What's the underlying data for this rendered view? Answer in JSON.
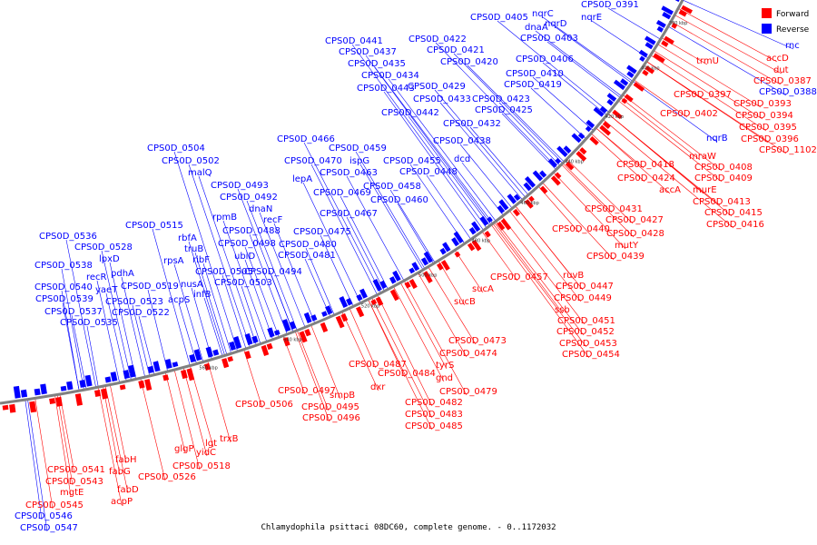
{
  "legend": {
    "forward": "Forward",
    "reverse": "Reverse"
  },
  "colors": {
    "forward": "#ff0000",
    "reverse": "#0000ff",
    "backbone": "#808080"
  },
  "caption": "Chlamydophila psittaci 08DC60, complete genome. - 0..1172032",
  "ticks": [
    "380 kbp",
    "400 kbp",
    "420 kbp",
    "440 kbp",
    "460 kbp",
    "480 kbp",
    "500 kbp",
    "520 kbp",
    "540 kbp",
    "560 kbp"
  ],
  "reverse_labels": [
    "CPS0D_0391",
    "nqrC",
    "nqrD",
    "nqrE",
    "CPS0D_0405",
    "dnaA",
    "CPS0D_0403",
    "rnc",
    "CPS0D_0422",
    "CPS0D_0421",
    "CPS0D_0406",
    "CPS0D_0441",
    "CPS0D_0437",
    "CPS0D_0420",
    "CPS0D_0410",
    "CPS0D_0435",
    "CPS0D_0434",
    "CPS0D_0443",
    "CPS0D_0429",
    "CPS0D_0419",
    "CPS0D_0433",
    "CPS0D_0423",
    "CPS0D_0442",
    "CPS0D_0425",
    "CPS0D_0432",
    "CPS0D_0466",
    "CPS0D_0438",
    "CPS0D_0504",
    "CPS0D_0459",
    "dcd",
    "CPS0D_0502",
    "CPS0D_0470",
    "ispG",
    "CPS0D_0455",
    "malQ",
    "CPS0D_0463",
    "CPS0D_0448",
    "lepA",
    "CPS0D_0493",
    "CPS0D_0458",
    "CPS0D_0469",
    "CPS0D_0492",
    "CPS0D_0460",
    "dnaN",
    "rpmB",
    "CPS0D_0467",
    "recF",
    "CPS0D_0515",
    "CPS0D_0488",
    "rbfA",
    "CPS0D_0475",
    "CPS0D_0536",
    "CPS0D_0498",
    "CPS0D_0480",
    "truB",
    "CPS0D_0528",
    "ubiD",
    "CPS0D_0481",
    "rpsA",
    "ribF",
    "lpxD",
    "CPS0D_0538",
    "CPS0D_0505",
    "CPS0D_0494",
    "pdhA",
    "nusA",
    "CPS0D_0503",
    "recR",
    "CPS0D_0519",
    "yaeT",
    "acpS",
    "CPS0D_0540",
    "infB",
    "CPS0D_0539",
    "CPS0D_0523",
    "CPS0D_0537",
    "CPS0D_0522",
    "CPS0D_0535",
    "CPS0D_0546",
    "CPS0D_0547",
    "nqrB",
    "CPS0D_0388"
  ],
  "forward_labels": [
    "accD",
    "dut",
    "trmU",
    "CPS0D_0387",
    "CPS0D_0397",
    "CPS0D_0393",
    "CPS0D_0394",
    "CPS0D_0402",
    "CPS0D_0395",
    "CPS0D_0396",
    "CPS0D_1102",
    "mraW",
    "CPS0D_0418",
    "CPS0D_0408",
    "CPS0D_0409",
    "CPS0D_0424",
    "accA",
    "murE",
    "CPS0D_0413",
    "CPS0D_0415",
    "CPS0D_0416",
    "CPS0D_0431",
    "CPS0D_0427",
    "CPS0D_0428",
    "CPS0D_0440",
    "mutY",
    "CPS0D_0439",
    "ruvB",
    "CPS0D_0457",
    "CPS0D_0447",
    "sucA",
    "CPS0D_0449",
    "sucB",
    "ssb",
    "CPS0D_0451",
    "CPS0D_0452",
    "CPS0D_0453",
    "CPS0D_0454",
    "CPS0D_0473",
    "CPS0D_0474",
    "tyrS",
    "CPS0D_0487",
    "gnd",
    "CPS0D_0484",
    "dxr",
    "CPS0D_0479",
    "CPS0D_0497",
    "smpB",
    "CPS0D_0482",
    "CPS0D_0506",
    "CPS0D_0495",
    "CPS0D_0483",
    "CPS0D_0496",
    "CPS0D_0485",
    "trxB",
    "lgt",
    "glgP",
    "yidC",
    "CPS0D_0518",
    "fabH",
    "fabG",
    "CPS0D_0526",
    "fabD",
    "acpP",
    "CPS0D_0541",
    "CPS0D_0543",
    "mgtE",
    "CPS0D_0545"
  ]
}
